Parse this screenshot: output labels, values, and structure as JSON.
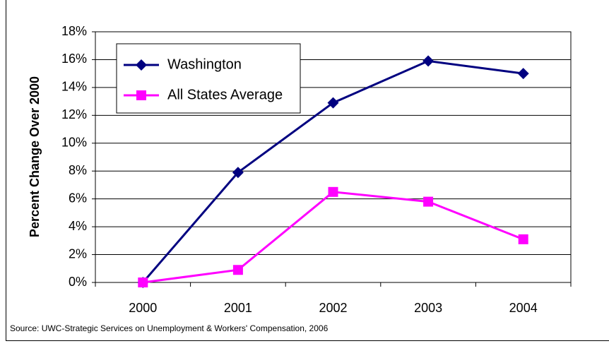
{
  "chart_data": {
    "type": "line",
    "y_label": "Percent Change Over 2000",
    "source": "Source: UWC-Strategic Services on Unemployment & Workers' Compensation, 2006",
    "categories": [
      "2000",
      "2001",
      "2002",
      "2003",
      "2004"
    ],
    "series": [
      {
        "name": "Washington",
        "color": "#000080",
        "marker": "diamond",
        "values": [
          0,
          7.9,
          12.9,
          15.9,
          15.0
        ]
      },
      {
        "name": "All States Average",
        "color": "#ff00ff",
        "marker": "square",
        "values": [
          0,
          0.9,
          6.5,
          5.8,
          3.1
        ]
      }
    ],
    "ylim": [
      0,
      18
    ],
    "yticks": [
      {
        "value": 0,
        "label": "0%"
      },
      {
        "value": 2,
        "label": "2%"
      },
      {
        "value": 4,
        "label": "4%"
      },
      {
        "value": 6,
        "label": "6%"
      },
      {
        "value": 8,
        "label": "8%"
      },
      {
        "value": 10,
        "label": "10%"
      },
      {
        "value": 12,
        "label": "12%"
      },
      {
        "value": 14,
        "label": "14%"
      },
      {
        "value": 16,
        "label": "16%"
      },
      {
        "value": 18,
        "label": "18%"
      }
    ],
    "grid": true,
    "legend": "upper left"
  }
}
